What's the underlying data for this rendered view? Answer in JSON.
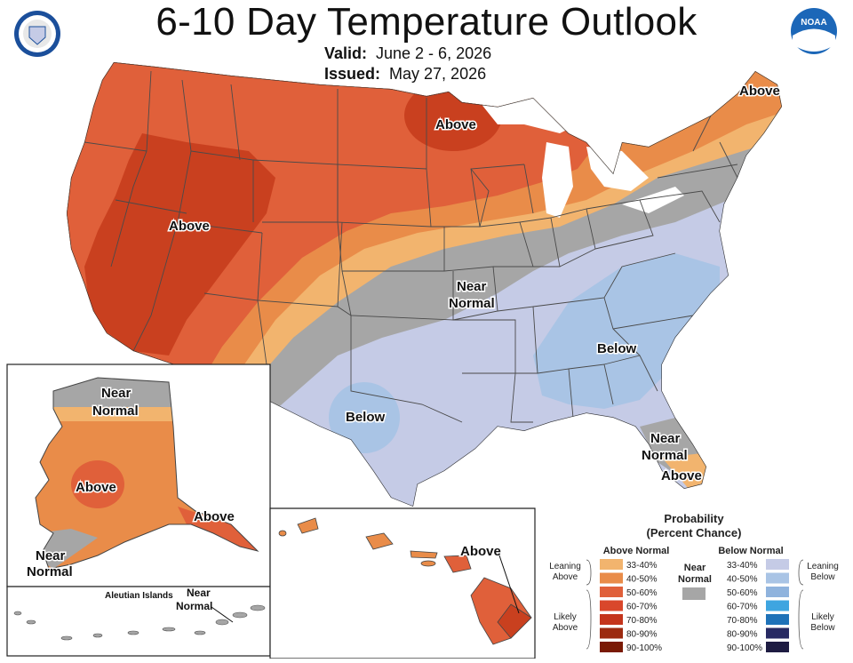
{
  "header": {
    "title": "6-10 Day Temperature Outlook",
    "valid_label": "Valid:",
    "valid_value": "June 2 - 6, 2026",
    "issued_label": "Issued:",
    "issued_value": "May 27, 2026"
  },
  "logos": {
    "left": "seal-icon",
    "right": "noaa-logo-icon",
    "right_text": "NOAA"
  },
  "map_labels": {
    "west": "Above",
    "north": "Above",
    "northeast": "Above",
    "central_1": "Near",
    "central_2": "Normal",
    "southeast": "Below",
    "texas": "Below",
    "florida_1": "Near",
    "florida_2": "Normal",
    "florida_3": "Above"
  },
  "alaska": {
    "north_1": "Near",
    "north_2": "Normal",
    "center": "Above",
    "southeast": "Above",
    "southwest_1": "Near",
    "southwest_2": "Normal"
  },
  "aleutian": {
    "title": "Aleutian Islands",
    "label_1": "Near",
    "label_2": "Normal"
  },
  "hawaii": {
    "label": "Above"
  },
  "legend": {
    "title_1": "Probability",
    "title_2": "(Percent Chance)",
    "above_head": "Above Normal",
    "below_head": "Below Normal",
    "near_1": "Near",
    "near_2": "Normal",
    "leaning_above_1": "Leaning",
    "leaning_above_2": "Above",
    "likely_above_1": "Likely",
    "likely_above_2": "Above",
    "leaning_below_1": "Leaning",
    "leaning_below_2": "Below",
    "likely_below_1": "Likely",
    "likely_below_2": "Below",
    "ranges": [
      "33-40%",
      "40-50%",
      "50-60%",
      "60-70%",
      "70-80%",
      "80-90%",
      "90-100%"
    ],
    "above_colors": [
      "#f2b46e",
      "#e98c49",
      "#e0603a",
      "#d9472b",
      "#c4351c",
      "#9c2a10",
      "#7a1a05"
    ],
    "below_colors": [
      "#c5cbe6",
      "#a9c4e5",
      "#8fb3dd",
      "#3ea5e0",
      "#1f72b8",
      "#282a63",
      "#1e1c42"
    ],
    "near_color": "#a6a6a6"
  }
}
